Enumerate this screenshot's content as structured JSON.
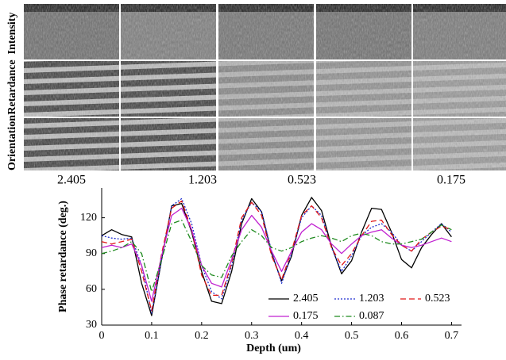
{
  "image_grid": {
    "row_labels": [
      "Intensity",
      "Retardance",
      "Orientation"
    ],
    "column_labels": [
      "2.405",
      "1.203",
      "0.523",
      "0.175"
    ]
  },
  "chart_data": {
    "type": "line",
    "y_label": "Phase retardance (deg.)",
    "x_label": "Depth (um)",
    "x": [
      0,
      0.02,
      0.04,
      0.06,
      0.08,
      0.1,
      0.12,
      0.14,
      0.16,
      0.18,
      0.2,
      0.22,
      0.24,
      0.26,
      0.28,
      0.3,
      0.32,
      0.34,
      0.36,
      0.38,
      0.4,
      0.42,
      0.44,
      0.46,
      0.48,
      0.5,
      0.52,
      0.54,
      0.56,
      0.58,
      0.6,
      0.62,
      0.64,
      0.66,
      0.68,
      0.7
    ],
    "xlim": [
      0,
      0.72
    ],
    "xticks": [
      0,
      0.1,
      0.2,
      0.3,
      0.4,
      0.5,
      0.6,
      0.7
    ],
    "ylim": [
      30,
      145
    ],
    "yticks": [
      30,
      60,
      90,
      120
    ],
    "legend": "bottom-right",
    "series": [
      {
        "name": "2.405",
        "color": "#000000",
        "dash": "solid",
        "values": [
          105,
          110,
          106,
          104,
          65,
          38,
          85,
          130,
          132,
          108,
          75,
          50,
          48,
          75,
          115,
          136,
          125,
          90,
          67,
          88,
          122,
          137,
          126,
          96,
          73,
          84,
          108,
          128,
          127,
          108,
          85,
          78,
          95,
          106,
          115,
          104
        ]
      },
      {
        "name": "1.203",
        "color": "#1f2fd0",
        "dash": "dotted",
        "values": [
          105,
          103,
          102,
          103,
          80,
          40,
          85,
          130,
          136,
          115,
          80,
          58,
          52,
          80,
          118,
          133,
          125,
          92,
          65,
          90,
          120,
          130,
          122,
          95,
          75,
          88,
          105,
          112,
          115,
          108,
          97,
          92,
          100,
          108,
          115,
          108
        ]
      },
      {
        "name": "0.523",
        "color": "#e01818",
        "dash": "dashed",
        "values": [
          100,
          98,
          100,
          102,
          75,
          42,
          90,
          128,
          134,
          110,
          72,
          55,
          55,
          82,
          120,
          133,
          122,
          88,
          68,
          92,
          122,
          130,
          120,
          95,
          80,
          90,
          105,
          117,
          118,
          106,
          97,
          92,
          102,
          108,
          113,
          110
        ]
      },
      {
        "name": "0.175",
        "color": "#c020d0",
        "dash": "solid",
        "values": [
          95,
          97,
          95,
          98,
          80,
          50,
          88,
          122,
          128,
          110,
          80,
          65,
          62,
          85,
          110,
          122,
          112,
          92,
          75,
          92,
          108,
          115,
          110,
          98,
          90,
          98,
          105,
          108,
          110,
          103,
          97,
          95,
          97,
          100,
          103,
          100
        ]
      },
      {
        "name": "0.087",
        "color": "#1e8a1e",
        "dash": "dashdot",
        "values": [
          90,
          92,
          95,
          100,
          90,
          58,
          85,
          115,
          118,
          100,
          80,
          72,
          70,
          88,
          100,
          110,
          105,
          95,
          92,
          95,
          100,
          103,
          105,
          103,
          100,
          105,
          107,
          105,
          100,
          98,
          98,
          100,
          102,
          108,
          114,
          110
        ]
      }
    ]
  }
}
